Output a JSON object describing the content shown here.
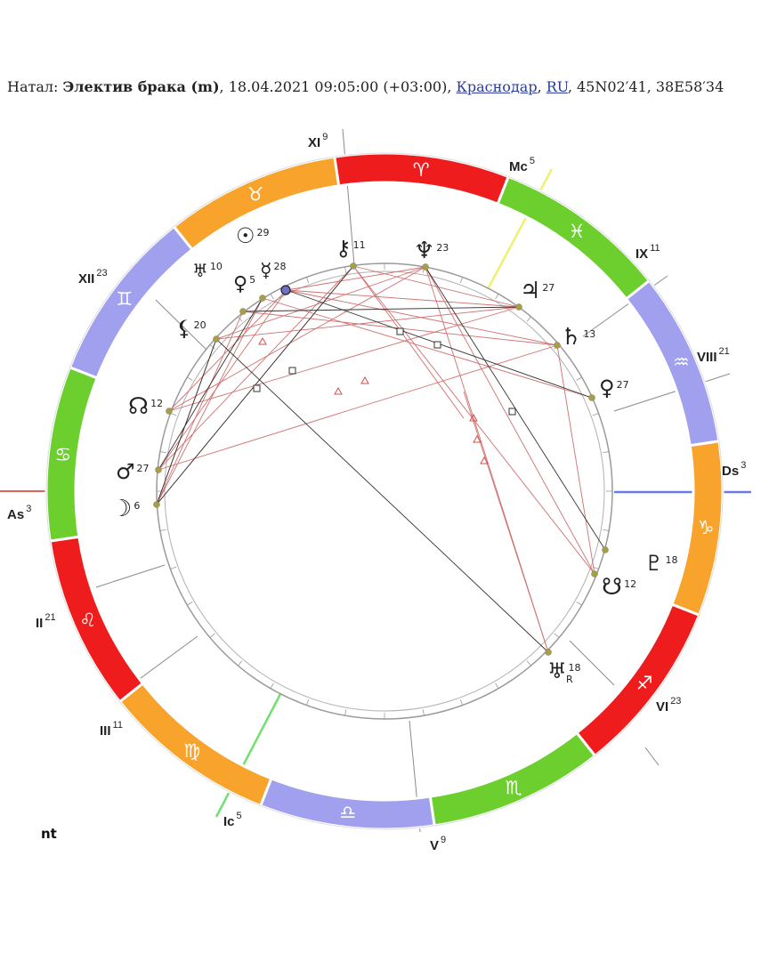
{
  "header": {
    "prefix": "Натал: ",
    "chart_name": "Электив брака (m)",
    "datetime": ", 18.04.2021 09:05:00 (+03:00), ",
    "city": "Краснодар",
    "sep": ", ",
    "country": "RU",
    "coords": ", 45N02′41, 38E58′34"
  },
  "footer": {
    "label": "nt"
  },
  "axes": {
    "asc": {
      "label": "As",
      "deg": "3",
      "color": "#e06060"
    },
    "dsc": {
      "label": "Ds",
      "deg": "3",
      "color": "#6a7ae8"
    },
    "mc": {
      "label": "Mc",
      "deg": "5",
      "color": "#f0f070"
    },
    "ic": {
      "label": "Ic",
      "deg": "5",
      "color": "#70e070"
    }
  },
  "houses": [
    {
      "label": "II",
      "deg": "21"
    },
    {
      "label": "III",
      "deg": "11"
    },
    {
      "label": "V",
      "deg": "9"
    },
    {
      "label": "VI",
      "deg": "23"
    },
    {
      "label": "VIII",
      "deg": "21"
    },
    {
      "label": "IX",
      "deg": "11"
    },
    {
      "label": "XI",
      "deg": "9"
    },
    {
      "label": "XII",
      "deg": "23"
    }
  ],
  "signs": [
    {
      "name": "cancer-sign-icon",
      "glyph": "♋",
      "color": "#6ccf2e"
    },
    {
      "name": "gemini-sign-icon",
      "glyph": "♊",
      "color": "#a0a0ee"
    },
    {
      "name": "taurus-sign-icon",
      "glyph": "♉",
      "color": "#f7a32c"
    },
    {
      "name": "aries-sign-icon",
      "glyph": "♈",
      "color": "#ee1c1c"
    },
    {
      "name": "pisces-sign-icon",
      "glyph": "♓",
      "color": "#6ccf2e"
    },
    {
      "name": "aquarius-sign-icon",
      "glyph": "♒",
      "color": "#a0a0ee"
    },
    {
      "name": "capricorn-sign-icon",
      "glyph": "♑",
      "color": "#f7a32c"
    },
    {
      "name": "sagittarius-sign-icon",
      "glyph": "♐",
      "color": "#ee1c1c"
    },
    {
      "name": "scorpio-sign-icon",
      "glyph": "♏",
      "color": "#6ccf2e"
    },
    {
      "name": "libra-sign-icon",
      "glyph": "♎",
      "color": "#a0a0ee"
    },
    {
      "name": "virgo-sign-icon",
      "glyph": "♍",
      "color": "#f7a32c"
    },
    {
      "name": "leo-sign-icon",
      "glyph": "♌",
      "color": "#ee1c1c"
    }
  ],
  "planets": [
    {
      "name": "sun-icon",
      "glyph": "☉",
      "deg": "29"
    },
    {
      "name": "uranus-icon",
      "glyph": "♅",
      "deg": "10"
    },
    {
      "name": "venus-icon",
      "glyph": "♀",
      "deg": "5"
    },
    {
      "name": "mercury-icon",
      "glyph": "☿",
      "deg": "28"
    },
    {
      "name": "chiron-icon",
      "glyph": "⚷",
      "deg": "11"
    },
    {
      "name": "neptune-icon",
      "glyph": "♆",
      "deg": "23"
    },
    {
      "name": "jupiter-icon",
      "glyph": "♃",
      "deg": "27"
    },
    {
      "name": "saturn-icon",
      "glyph": "♄",
      "deg": "13"
    },
    {
      "name": "lilith-icon",
      "glyph": "⚸",
      "deg": "20"
    },
    {
      "name": "north-node-icon",
      "glyph": "☊",
      "deg": "12"
    },
    {
      "name": "mars-icon",
      "glyph": "♂",
      "deg": "27"
    },
    {
      "name": "moon-icon",
      "glyph": "☽",
      "deg": "6"
    },
    {
      "name": "selena-icon",
      "glyph": "♀",
      "deg": "27"
    },
    {
      "name": "pluto-icon",
      "glyph": "♇",
      "deg": "18"
    },
    {
      "name": "south-node-icon",
      "glyph": "☋",
      "deg": "12"
    },
    {
      "name": "uranus-r-icon",
      "glyph": "♅",
      "deg": "18",
      "retro": "R"
    }
  ]
}
